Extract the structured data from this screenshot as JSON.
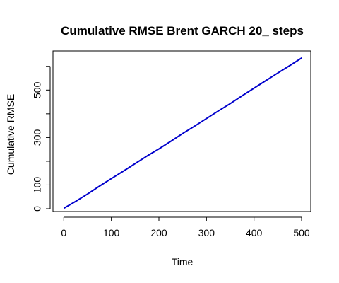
{
  "chart_data": {
    "type": "line",
    "title": "Cumulative RMSE Brent GARCH 20_ steps",
    "xlabel": "Time",
    "ylabel": "Cumulative RMSE",
    "xlim": [
      1,
      500
    ],
    "ylim": [
      0,
      650
    ],
    "x_ticks": [
      0,
      100,
      200,
      300,
      400,
      500
    ],
    "y_ticks": [
      0,
      100,
      200,
      300,
      400,
      500,
      600
    ],
    "y_tick_labels": [
      "0",
      "100",
      "",
      "300",
      "",
      "500",
      ""
    ],
    "grid": false,
    "legend": "none",
    "series": [
      {
        "color": "#0000cc",
        "x": [
          1,
          25,
          50,
          75,
          100,
          125,
          150,
          175,
          200,
          225,
          250,
          275,
          300,
          325,
          350,
          375,
          400,
          425,
          450,
          475,
          500
        ],
        "y": [
          3,
          31,
          62,
          95,
          127,
          158,
          190,
          222,
          252,
          284,
          317,
          348,
          380,
          412,
          443,
          476,
          508,
          540,
          572,
          603,
          635
        ]
      }
    ]
  }
}
